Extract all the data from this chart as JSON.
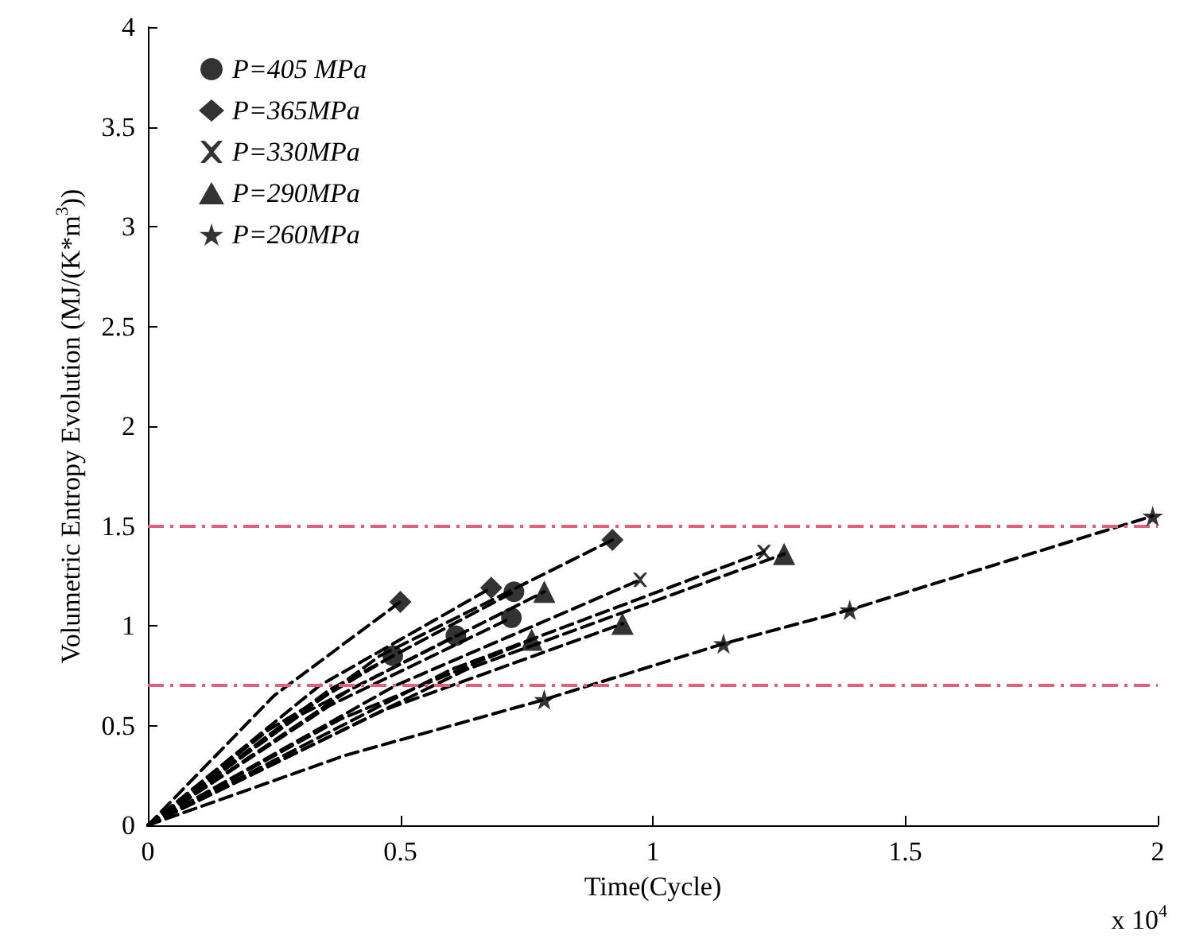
{
  "chart_data": {
    "type": "line",
    "xlabel": "Time(Cycle)",
    "ylabel": "Volumetric Entropy Evolution (MJ/(K*m$^{3}$))",
    "annotations": [
      "x 10$^{4}$"
    ],
    "xlim": [
      0,
      2
    ],
    "xticks": [
      0,
      0.5,
      1,
      1.5,
      2
    ],
    "ylim": [
      0,
      4
    ],
    "yticks": [
      0,
      0.5,
      1,
      1.5,
      2,
      2.5,
      3,
      3.5,
      4
    ],
    "grid": false,
    "legend": "top left",
    "ref_lines": [
      {
        "axis": "y",
        "value": 1.5,
        "color": "#e0607e",
        "line_style": "dashed"
      },
      {
        "axis": "y",
        "value": 0.7,
        "color": "#e0607e",
        "line_style": "dashed"
      }
    ],
    "series": [
      {
        "type": "scatter",
        "name": "P=405 MPa",
        "color": "#000000",
        "marker": "circle",
        "x": [
          0.485,
          0.61,
          0.72,
          0.725
        ],
        "values": [
          0.85,
          0.95,
          1.04,
          1.17
        ]
      },
      {
        "type": "scatter",
        "name": "P=365MPa",
        "color": "#000000",
        "marker": "diamond",
        "x": [
          0.5,
          0.68,
          0.92
        ],
        "values": [
          1.12,
          1.19,
          1.43
        ]
      },
      {
        "type": "scatter",
        "name": "P=330MPa",
        "color": "#000000",
        "marker": "cross",
        "x": [
          0.975,
          1.22
        ],
        "values": [
          1.23,
          1.37
        ]
      },
      {
        "type": "scatter",
        "name": "P=290MPa",
        "color": "#000000",
        "marker": "triangle",
        "x": [
          0.76,
          0.785,
          0.94,
          1.26
        ],
        "values": [
          0.93,
          1.17,
          1.01,
          1.36
        ]
      },
      {
        "type": "scatter",
        "name": "P=260MPa",
        "color": "#000000",
        "marker": "star",
        "x": [
          0.785,
          1.14,
          1.39,
          1.99
        ],
        "values": [
          0.63,
          0.91,
          1.08,
          1.55
        ]
      },
      {
        "type": "line",
        "color": "#000000",
        "line_style": "dashed",
        "x": [
          0,
          0.24,
          0.485
        ],
        "values": [
          0,
          0.48,
          0.85
        ]
      },
      {
        "type": "line",
        "color": "#000000",
        "line_style": "dashed",
        "x": [
          0,
          0.3,
          0.61
        ],
        "values": [
          0,
          0.55,
          0.95
        ]
      },
      {
        "type": "line",
        "color": "#000000",
        "line_style": "dashed",
        "x": [
          0,
          0.36,
          0.72
        ],
        "values": [
          0,
          0.6,
          1.04
        ]
      },
      {
        "type": "line",
        "color": "#000000",
        "line_style": "dashed",
        "x": [
          0,
          0.36,
          0.725
        ],
        "values": [
          0,
          0.68,
          1.17
        ]
      },
      {
        "type": "line",
        "color": "#000000",
        "line_style": "dashed",
        "x": [
          0,
          0.25,
          0.5
        ],
        "values": [
          0,
          0.65,
          1.12
        ]
      },
      {
        "type": "line",
        "color": "#000000",
        "line_style": "dashed",
        "x": [
          0,
          0.34,
          0.68
        ],
        "values": [
          0,
          0.7,
          1.19
        ]
      },
      {
        "type": "line",
        "color": "#000000",
        "line_style": "dashed",
        "x": [
          0,
          0.46,
          0.92
        ],
        "values": [
          0,
          0.85,
          1.43
        ]
      },
      {
        "type": "line",
        "color": "#000000",
        "line_style": "dashed",
        "x": [
          0,
          0.49,
          0.975
        ],
        "values": [
          0,
          0.7,
          1.23
        ]
      },
      {
        "type": "line",
        "color": "#000000",
        "line_style": "dashed",
        "x": [
          0,
          0.6,
          1.22
        ],
        "values": [
          0,
          0.78,
          1.37
        ]
      },
      {
        "type": "line",
        "color": "#000000",
        "line_style": "dashed",
        "x": [
          0,
          0.4,
          0.785
        ],
        "values": [
          0,
          0.68,
          1.17
        ]
      },
      {
        "type": "line",
        "color": "#000000",
        "line_style": "dashed",
        "x": [
          0,
          0.38,
          0.76
        ],
        "values": [
          0,
          0.53,
          0.93
        ]
      },
      {
        "type": "line",
        "color": "#000000",
        "line_style": "dashed",
        "x": [
          0,
          0.47,
          0.94
        ],
        "values": [
          0,
          0.58,
          1.01
        ]
      },
      {
        "type": "line",
        "color": "#000000",
        "line_style": "dashed",
        "x": [
          0,
          0.63,
          1.26
        ],
        "values": [
          0,
          0.78,
          1.36
        ]
      },
      {
        "type": "line",
        "color": "#000000",
        "line_style": "dashed",
        "x": [
          0,
          0.39,
          0.785,
          1.14,
          1.39,
          1.99
        ],
        "values": [
          0,
          0.35,
          0.63,
          0.91,
          1.08,
          1.55
        ]
      }
    ]
  }
}
